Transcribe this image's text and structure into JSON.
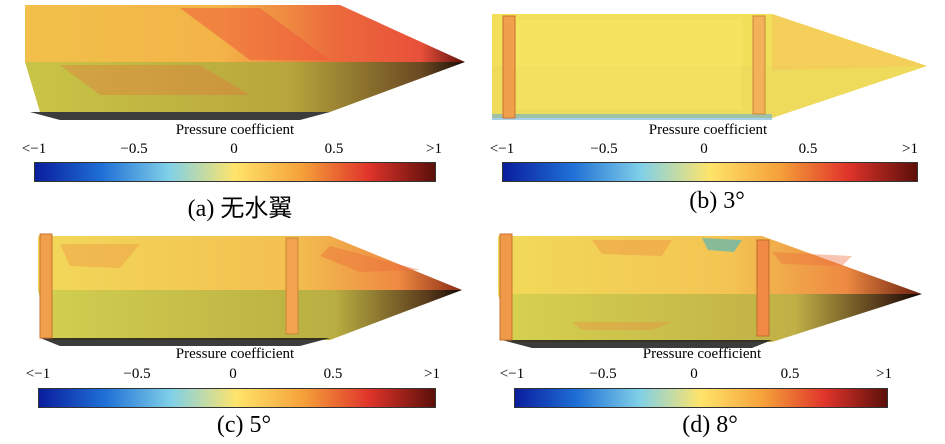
{
  "colorbar": {
    "title": "Pressure coefficient",
    "ticks": [
      "<−1",
      "−0.5",
      "0",
      "0.5",
      ">1"
    ],
    "stops": [
      "#0a1e9e",
      "#1f6fd6",
      "#7fd0e8",
      "#ffe46a",
      "#f5a13a",
      "#e0342a",
      "#5c0f0a"
    ]
  },
  "panels": [
    {
      "caption": "(a) 无水翼",
      "fins": 0
    },
    {
      "caption": "(b) 3°",
      "fins": 2
    },
    {
      "caption": "(c) 5°",
      "fins": 2
    },
    {
      "caption": "(d) 8°",
      "fins": 2
    }
  ]
}
